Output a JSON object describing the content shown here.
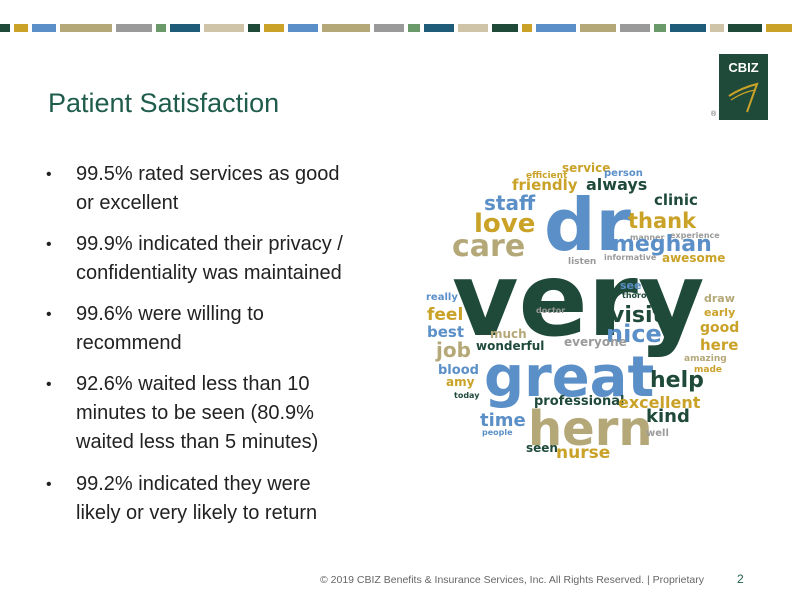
{
  "slide": {
    "title": "Patient Satisfaction",
    "bullets": [
      [
        "99.5% rated services as good",
        "or excellent"
      ],
      [
        "99.9% indicated their privacy /",
        "confidentiality was maintained"
      ],
      [
        "99.6% were willing to",
        "recommend"
      ],
      [
        "92.6% waited less than 10",
        "minutes to be seen (80.9%",
        "waited less than 5 minutes)"
      ],
      [
        "99.2% indicated they were",
        "likely or very likely to return"
      ]
    ],
    "bullet_symbol": "•"
  },
  "logo": {
    "text": "CBIZ",
    "reg_mark": "®"
  },
  "footer": {
    "copyright": "© 2019 CBIZ Benefits & Insurance Services, Inc. All Rights Reserved. | Proprietary",
    "page_number": "2"
  },
  "colors": {
    "title": "#1f5c4b",
    "dark_green": "#1f4a3a",
    "gold": "#c9a227",
    "blue": "#5b8fc7",
    "khaki": "#b5a878",
    "gray": "#9a9a9a"
  },
  "word_cloud": [
    {
      "text": "service"
    },
    {
      "text": "efficient"
    },
    {
      "text": "person"
    },
    {
      "text": "friendly"
    },
    {
      "text": "always"
    },
    {
      "text": "staff"
    },
    {
      "text": "clinic"
    },
    {
      "text": "dr"
    },
    {
      "text": "love"
    },
    {
      "text": "thank"
    },
    {
      "text": "manner"
    },
    {
      "text": "experience"
    },
    {
      "text": "care"
    },
    {
      "text": "meghan"
    },
    {
      "text": "listen"
    },
    {
      "text": "informative"
    },
    {
      "text": "awesome"
    },
    {
      "text": "very"
    },
    {
      "text": "really"
    },
    {
      "text": "see"
    },
    {
      "text": "thorough"
    },
    {
      "text": "draw"
    },
    {
      "text": "early"
    },
    {
      "text": "feel"
    },
    {
      "text": "doctor"
    },
    {
      "text": "visit"
    },
    {
      "text": "good"
    },
    {
      "text": "best"
    },
    {
      "text": "much"
    },
    {
      "text": "nice"
    },
    {
      "text": "everyone"
    },
    {
      "text": "here"
    },
    {
      "text": "job"
    },
    {
      "text": "wonderful"
    },
    {
      "text": "amazing"
    },
    {
      "text": "great"
    },
    {
      "text": "made"
    },
    {
      "text": "blood"
    },
    {
      "text": "amy"
    },
    {
      "text": "help"
    },
    {
      "text": "today"
    },
    {
      "text": "professional"
    },
    {
      "text": "excellent"
    },
    {
      "text": "time"
    },
    {
      "text": "hern"
    },
    {
      "text": "kind"
    },
    {
      "text": "people"
    },
    {
      "text": "well"
    },
    {
      "text": "seen"
    },
    {
      "text": "nurse"
    }
  ]
}
